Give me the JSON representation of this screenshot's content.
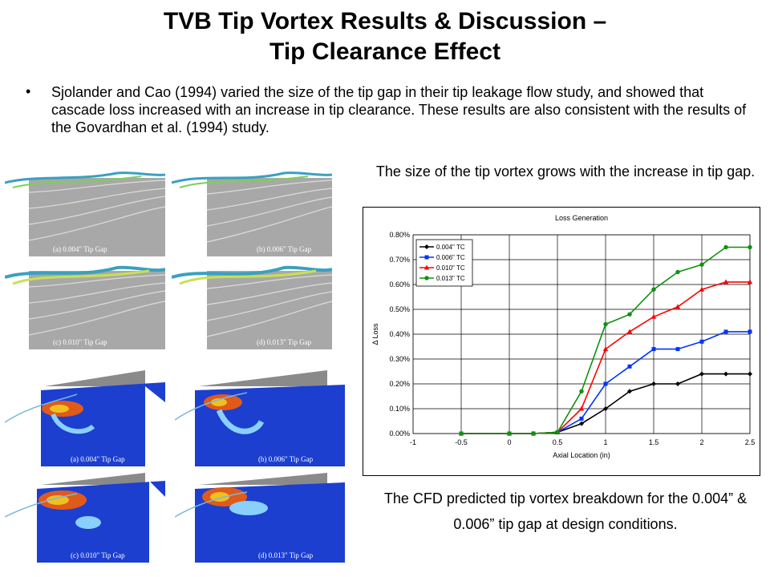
{
  "slide": {
    "title_line1": "TVB Tip Vortex Results & Discussion –",
    "title_line2": "Tip Clearance Effect",
    "bullet_char": "•",
    "bullet_text": "Sjolander and Cao (1994) varied the size of the tip gap in their tip leakage flow study, and showed that cascade loss increased with an increase in tip clearance. These results are also consistent with the results of the Govardhan et al. (1994) study.",
    "caption_top": "The size of the tip vortex grows with the increase in tip gap.",
    "caption_bottom": "The CFD predicted tip vortex breakdown for the 0.004” & 0.006” tip gap at design conditions."
  },
  "panels": {
    "top": [
      "(a) 0.004\" Tip Gap",
      "(b) 0.006\" Tip Gap",
      "(c) 0.010\" Tip Gap",
      "(d) 0.013\" Tip Gap"
    ],
    "bottom": [
      "(a) 0.004\" Tip Gap",
      "(b) 0.006\" Tip Gap",
      "(c) 0.010\" Tip Gap",
      "(d) 0.013\" Tip Gap"
    ]
  },
  "chart_data": {
    "type": "line",
    "title": "Loss Generation",
    "xlabel": "Axial Location (in)",
    "ylabel": "Δ Loss",
    "xlim": [
      -1,
      2.5
    ],
    "ylim": [
      0,
      0.8
    ],
    "x_ticks": [
      "-1",
      "-0.5",
      "0",
      "0.5",
      "1",
      "1.5",
      "2",
      "2.5"
    ],
    "y_ticks": [
      "0.00%",
      "0.10%",
      "0.20%",
      "0.30%",
      "0.40%",
      "0.50%",
      "0.60%",
      "0.70%",
      "0.80%"
    ],
    "grid": true,
    "legend_position": "top-left",
    "x": [
      -0.5,
      0,
      0.25,
      0.5,
      0.75,
      1,
      1.25,
      1.5,
      1.75,
      2,
      2.25,
      2.5
    ],
    "series": [
      {
        "name": "0.004\" TC",
        "color": "#000000",
        "marker": "diamond",
        "values": [
          0,
          0,
          0,
          0.005,
          0.04,
          0.1,
          0.17,
          0.2,
          0.2,
          0.24,
          0.24,
          0.24
        ]
      },
      {
        "name": "0.006\" TC",
        "color": "#0033ff",
        "marker": "square",
        "values": [
          0,
          0,
          0,
          0.005,
          0.06,
          0.2,
          0.27,
          0.34,
          0.34,
          0.37,
          0.41,
          0.41
        ]
      },
      {
        "name": "0.010\" TC",
        "color": "#ff0000",
        "marker": "triangle",
        "values": [
          0,
          0,
          0,
          0.005,
          0.1,
          0.34,
          0.41,
          0.47,
          0.51,
          0.58,
          0.61,
          0.61
        ]
      },
      {
        "name": "0.013\" TC",
        "color": "#109010",
        "marker": "circle",
        "values": [
          0,
          0,
          0,
          0.005,
          0.17,
          0.44,
          0.48,
          0.58,
          0.65,
          0.68,
          0.75,
          0.75
        ]
      }
    ]
  }
}
